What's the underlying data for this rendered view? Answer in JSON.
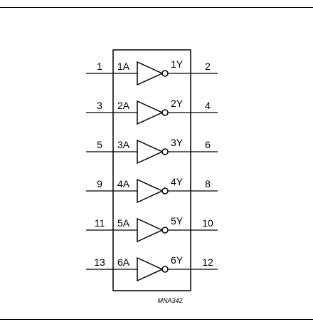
{
  "diagram": {
    "reference_code": "MNA342",
    "gates": [
      {
        "in_pin": "1",
        "in_label": "1A",
        "out_label": "1Y",
        "out_pin": "2"
      },
      {
        "in_pin": "3",
        "in_label": "2A",
        "out_label": "2Y",
        "out_pin": "4"
      },
      {
        "in_pin": "5",
        "in_label": "3A",
        "out_label": "3Y",
        "out_pin": "6"
      },
      {
        "in_pin": "9",
        "in_label": "4A",
        "out_label": "4Y",
        "out_pin": "8"
      },
      {
        "in_pin": "11",
        "in_label": "5A",
        "out_label": "5Y",
        "out_pin": "10"
      },
      {
        "in_pin": "13",
        "in_label": "6A",
        "out_label": "6Y",
        "out_pin": "12"
      }
    ]
  }
}
